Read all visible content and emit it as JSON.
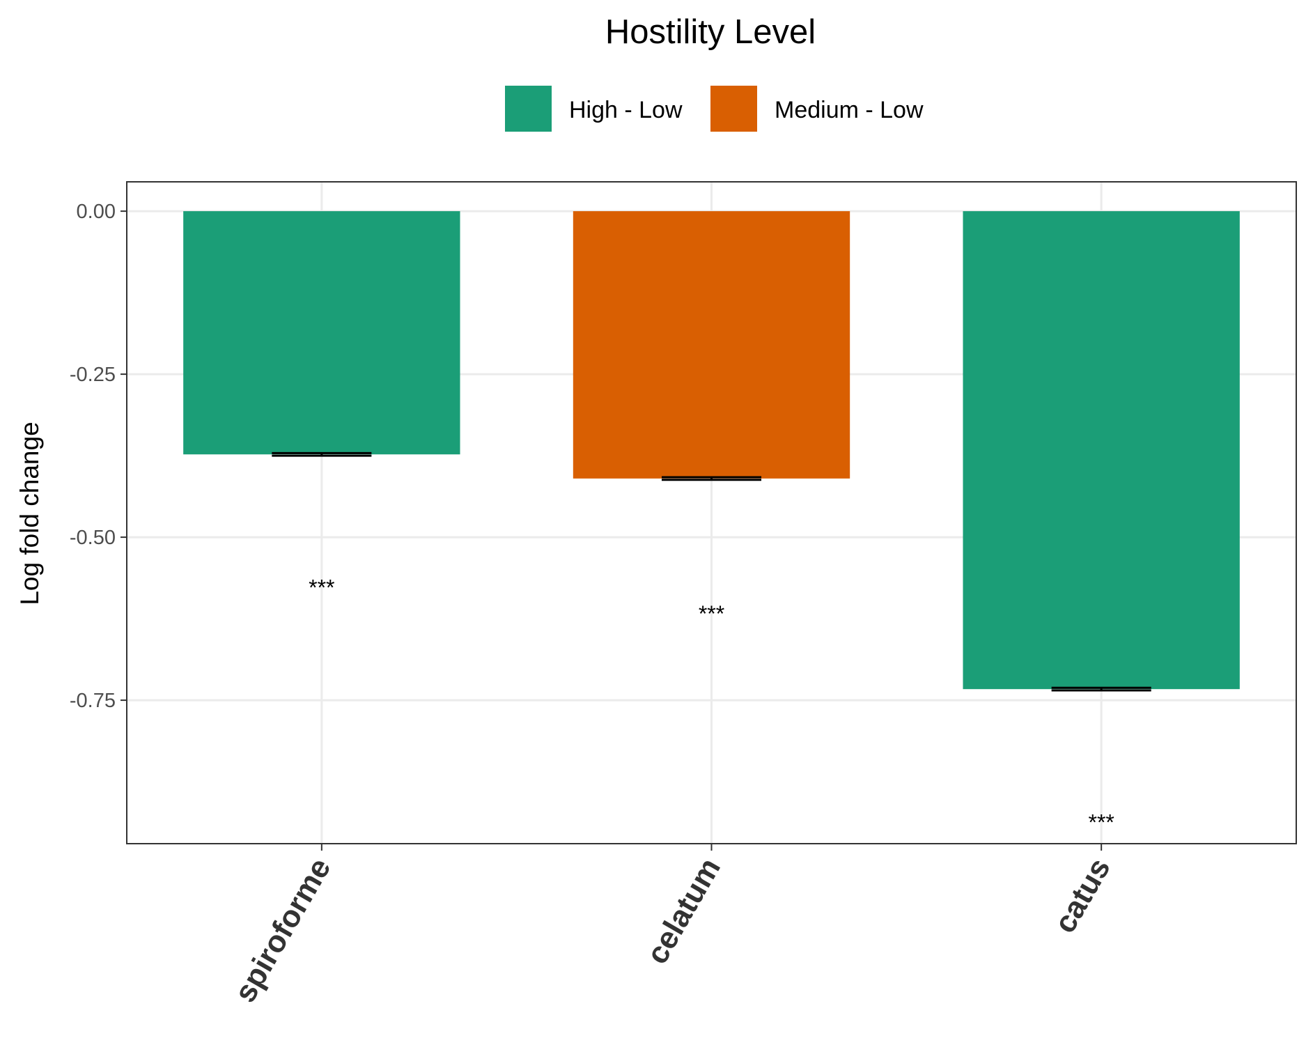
{
  "chart_data": {
    "type": "bar",
    "legend": {
      "title": "Hostility Level",
      "position": "top",
      "entries": [
        {
          "label": "High - Low",
          "color": "#1b9e77"
        },
        {
          "label": "Medium - Low",
          "color": "#d95f02"
        }
      ]
    },
    "categories": [
      "spiroforme",
      "celatum",
      "catus"
    ],
    "values": [
      -0.373,
      -0.41,
      -0.733
    ],
    "errors": [
      0.002,
      0.002,
      0.002
    ],
    "groups": [
      "High - Low",
      "Medium - Low",
      "High - Low"
    ],
    "significance": [
      {
        "label": "***",
        "y": -0.57
      },
      {
        "label": "***",
        "y": -0.61
      },
      {
        "label": "***",
        "y": -0.93
      }
    ],
    "xlabel": "",
    "ylabel": "Log fold change",
    "ylim": [
      -0.97,
      0.045
    ],
    "yticks": [
      0,
      -0.25,
      -0.5,
      -0.75
    ],
    "ytick_labels": [
      "0.00",
      "-0.25",
      "-0.50",
      "-0.75"
    ],
    "grid": true,
    "colors": {
      "High - Low": "#1b9e77",
      "Medium - Low": "#d95f02",
      "grid": "#ebebeb",
      "panel_border": "#333333"
    }
  }
}
